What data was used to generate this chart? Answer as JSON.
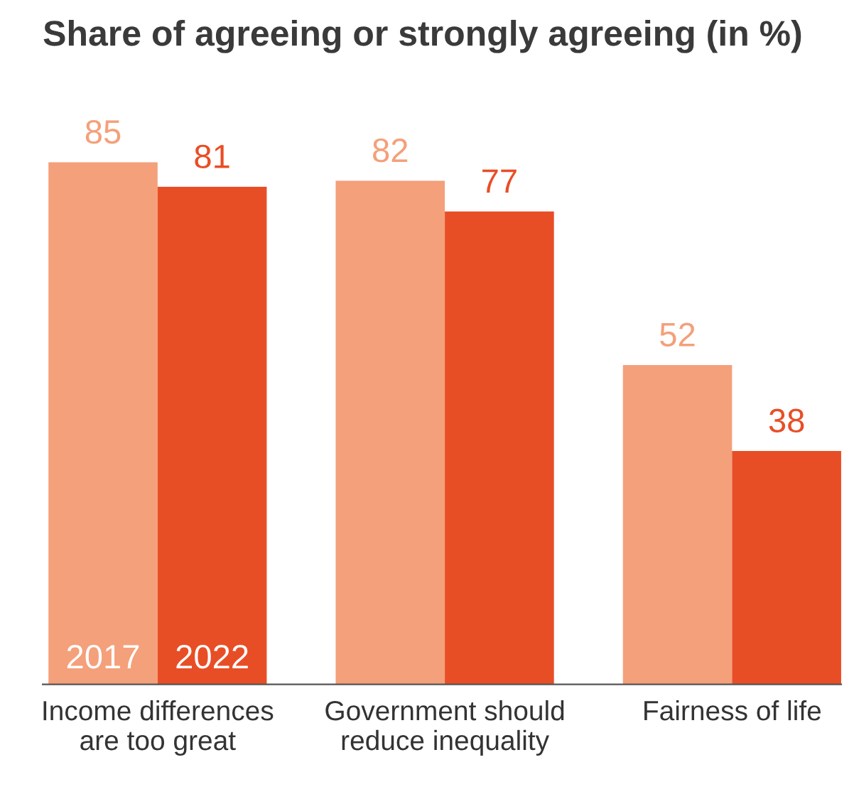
{
  "chart_data": {
    "type": "bar",
    "title": "Share of agreeing or strongly agreeing (in %)",
    "categories": [
      "Income differences\nare too great",
      "Government should\nreduce inequality",
      "Fairness of life"
    ],
    "series": [
      {
        "name": "2017",
        "color": "#f4a07a",
        "values": [
          85,
          82,
          52
        ]
      },
      {
        "name": "2022",
        "color": "#e84e26",
        "values": [
          81,
          77,
          38
        ]
      }
    ],
    "data_labels": true,
    "grid": false,
    "legend": false
  }
}
